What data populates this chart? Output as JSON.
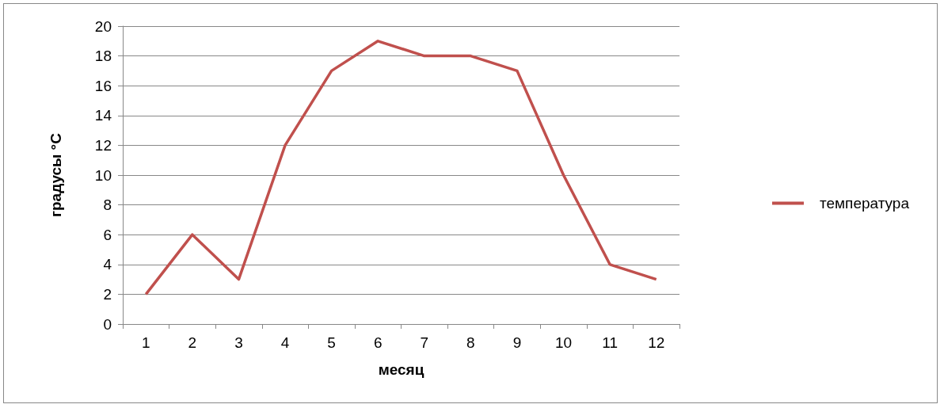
{
  "chart_data": {
    "type": "line",
    "xlabel": "месяц",
    "ylabel": "градусы °C",
    "categories": [
      "1",
      "2",
      "3",
      "4",
      "5",
      "6",
      "7",
      "8",
      "9",
      "10",
      "11",
      "12"
    ],
    "series": [
      {
        "name": "температура",
        "color": "#c0504d",
        "values": [
          2,
          6,
          3,
          12,
          17,
          19,
          18,
          18,
          17,
          10,
          4,
          3
        ]
      }
    ],
    "ylim": [
      0,
      20
    ],
    "yticks": [
      0,
      2,
      4,
      6,
      8,
      10,
      12,
      14,
      16,
      18,
      20
    ],
    "grid": "y",
    "legend": "right",
    "marker": "none",
    "line_style": "solid"
  }
}
